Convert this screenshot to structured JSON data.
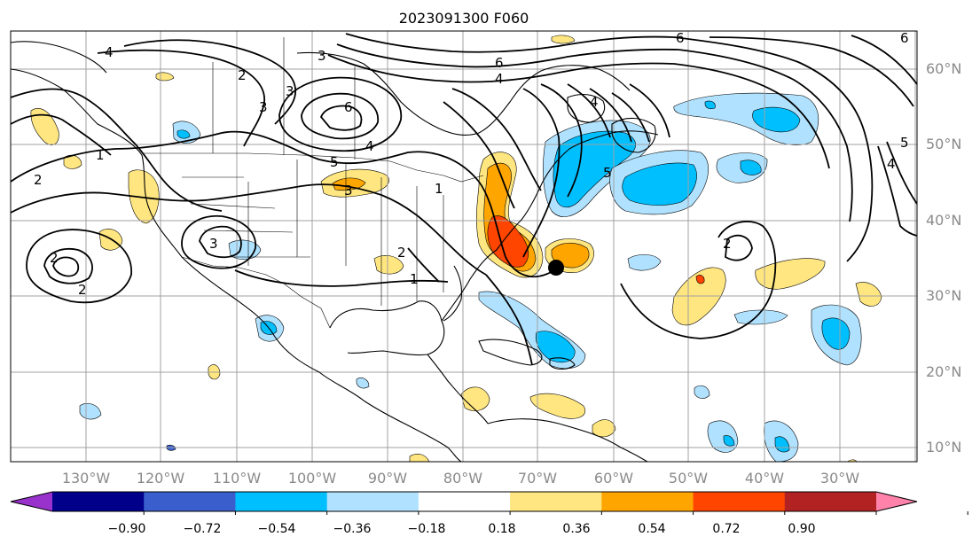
{
  "title": "2023091300 F060",
  "lon_labels": [
    "130°W",
    "120°W",
    "110°W",
    "100°W",
    "90°W",
    "80°W",
    "70°W",
    "60°W",
    "50°W",
    "40°W",
    "30°W"
  ],
  "lat_labels": [
    "60°N",
    "50°N",
    "40°N",
    "30°N",
    "20°N",
    "10°N"
  ],
  "colorbar": {
    "ticks": [
      "−0.90",
      "−0.72",
      "−0.54",
      "−0.36",
      "−0.18",
      "0.18",
      "0.36",
      "0.54",
      "0.72",
      "0.90"
    ],
    "colors": [
      "#9932cc",
      "#00008b",
      "#3a5fcd",
      "#00bfff",
      "#b0e2ff",
      "#ffffff",
      "#ffe680",
      "#ffa500",
      "#ff4500",
      "#b22222",
      "#ff82ab"
    ]
  },
  "contour_labels": [
    "4",
    "3",
    "2",
    "1",
    "3",
    "2",
    "2",
    "3",
    "6",
    "4",
    "5",
    "3",
    "6",
    "4",
    "6",
    "5",
    "4",
    "3",
    "2",
    "1",
    "1",
    "2",
    "5",
    "4",
    "6",
    "2"
  ],
  "storm_marker": "storm-center-dot"
}
